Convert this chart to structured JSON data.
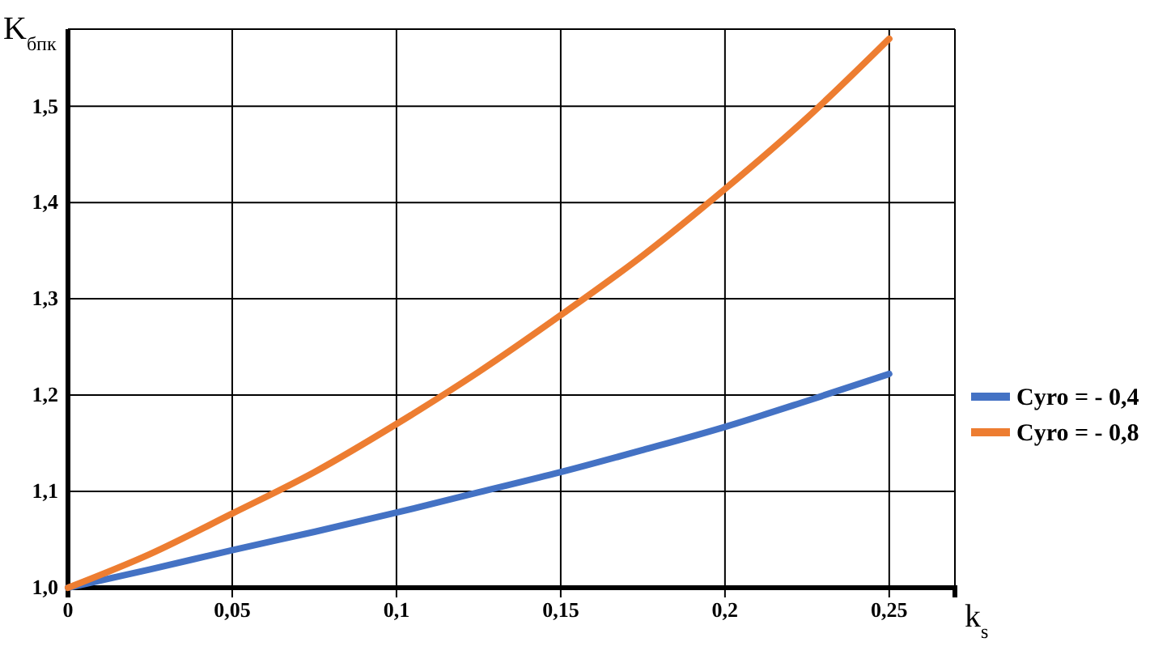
{
  "chart_data": {
    "type": "line",
    "xlabel": "k$_{s}$",
    "ylabel": "K$_{бпк}$",
    "x": [
      0,
      0.025,
      0.05,
      0.075,
      0.1,
      0.125,
      0.15,
      0.175,
      0.2,
      0.225,
      0.25
    ],
    "series": [
      {
        "name": "Cyro = - 0,4",
        "color": "#4472c4",
        "values": [
          1.0,
          1.019,
          1.039,
          1.058,
          1.078,
          1.099,
          1.12,
          1.143,
          1.167,
          1.194,
          1.222
        ]
      },
      {
        "name": "Cyro = - 0,8",
        "color": "#ed7d31",
        "values": [
          1.0,
          1.035,
          1.077,
          1.12,
          1.17,
          1.224,
          1.283,
          1.345,
          1.414,
          1.488,
          1.57
        ]
      }
    ],
    "xlim": [
      0,
      0.27
    ],
    "xticks": [
      {
        "value": 0,
        "label": "0"
      },
      {
        "value": 0.05,
        "label": "0,05"
      },
      {
        "value": 0.1,
        "label": "0,1"
      },
      {
        "value": 0.15,
        "label": "0,15"
      },
      {
        "value": 0.2,
        "label": "0,2"
      },
      {
        "value": 0.25,
        "label": "0,25"
      }
    ],
    "ylim": [
      1,
      1.58
    ],
    "yticks": [
      {
        "value": 1,
        "label": "1,0"
      },
      {
        "value": 1.1,
        "label": "1,1"
      },
      {
        "value": 1.2,
        "label": "1,2"
      },
      {
        "value": 1.3,
        "label": "1,3"
      },
      {
        "value": 1.4,
        "label": "1,4"
      },
      {
        "value": 1.5,
        "label": "1,5"
      }
    ],
    "grid": true,
    "legend": "right",
    "marker": "none",
    "line_style": "solid"
  }
}
